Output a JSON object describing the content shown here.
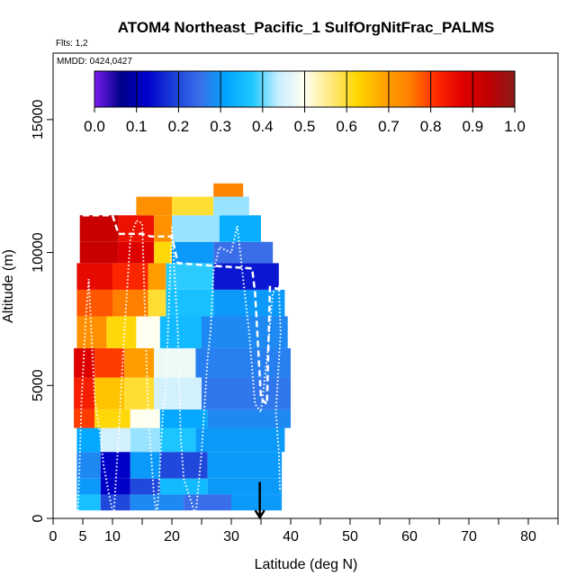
{
  "chart_data": {
    "type": "heatmap",
    "title": "ATOM4 Northeast_Pacific_1 SulfOrgNitFrac_PALMS",
    "subtitle": "Flts: 1,2",
    "mmdd": "MMDD: 0424,0427",
    "xlabel": "Latitude (deg N)",
    "ylabel": "Altitude (m)",
    "xlim": [
      0,
      85
    ],
    "ylim": [
      0,
      17500
    ],
    "x_ticks": [
      "0",
      "5",
      "10",
      "20",
      "30",
      "40",
      "50",
      "60",
      "70",
      "80"
    ],
    "x_tick_values": [
      0,
      5,
      10,
      20,
      30,
      40,
      50,
      60,
      70,
      80
    ],
    "y_ticks": [
      "0",
      "5000",
      "10000",
      "15000"
    ],
    "y_tick_values": [
      0,
      5000,
      10000,
      15000
    ],
    "colorbar": {
      "min": 0.0,
      "max": 1.0,
      "ticks": [
        "0.0",
        "0.1",
        "0.2",
        "0.3",
        "0.4",
        "0.5",
        "0.6",
        "0.7",
        "0.8",
        "0.9",
        "1.0"
      ],
      "colors": [
        "#7a1cf0",
        "#00008b",
        "#0000cd",
        "#1a3fd8",
        "#3a6ee8",
        "#00a5ff",
        "#1ec8ff",
        "#c8eeff",
        "#fffff0",
        "#ffe97f",
        "#ffd700",
        "#ffa500",
        "#ff7f00",
        "#ff2a00",
        "#e00000",
        "#c00000",
        "#8b1a1a"
      ]
    },
    "marker": {
      "latitude": 34.8,
      "altitude_top": 700
    },
    "bands": [
      {
        "alt": [
          300,
          900
        ],
        "cells": [
          [
            4,
            8,
            0.36
          ],
          [
            8,
            13,
            0.2
          ],
          [
            13,
            22,
            0.28
          ],
          [
            22,
            30,
            0.25
          ],
          [
            30,
            38.5,
            0.3
          ]
        ]
      },
      {
        "alt": [
          900,
          1500
        ],
        "cells": [
          [
            4,
            8,
            0.3
          ],
          [
            8,
            13,
            0.12
          ],
          [
            13,
            18,
            0.2
          ],
          [
            18,
            26,
            0.35
          ],
          [
            26,
            38.5,
            0.3
          ]
        ]
      },
      {
        "alt": [
          1500,
          2500
        ],
        "cells": [
          [
            4,
            8,
            0.28
          ],
          [
            8,
            13,
            0.12
          ],
          [
            13,
            18,
            0.3
          ],
          [
            18,
            26,
            0.2
          ],
          [
            26,
            38.5,
            0.3
          ]
        ]
      },
      {
        "alt": [
          2500,
          3400
        ],
        "cells": [
          [
            4,
            8,
            0.32
          ],
          [
            8,
            13,
            0.45
          ],
          [
            13,
            18,
            0.42
          ],
          [
            18,
            24,
            0.37
          ],
          [
            24,
            39,
            0.3
          ]
        ]
      },
      {
        "alt": [
          3400,
          4100
        ],
        "cells": [
          [
            3.5,
            7,
            0.8
          ],
          [
            7,
            13,
            0.62
          ],
          [
            13,
            18,
            0.5
          ],
          [
            18,
            26,
            0.32
          ],
          [
            26,
            40,
            0.28
          ]
        ]
      },
      {
        "alt": [
          4100,
          5300
        ],
        "cells": [
          [
            3.5,
            7,
            0.83
          ],
          [
            7,
            12,
            0.65
          ],
          [
            12,
            17,
            0.6
          ],
          [
            17,
            25,
            0.45
          ],
          [
            25,
            40,
            0.26
          ]
        ]
      },
      {
        "alt": [
          5300,
          6400
        ],
        "cells": [
          [
            3.5,
            7,
            0.88
          ],
          [
            7,
            12,
            0.8
          ],
          [
            12,
            17,
            0.7
          ],
          [
            17,
            24,
            0.48
          ],
          [
            24,
            40,
            0.27
          ]
        ]
      },
      {
        "alt": [
          6400,
          7600
        ],
        "cells": [
          [
            4,
            9,
            0.72
          ],
          [
            9,
            14,
            0.62
          ],
          [
            14,
            18,
            0.5
          ],
          [
            18,
            25,
            0.35
          ],
          [
            25,
            39.5,
            0.28
          ]
        ]
      },
      {
        "alt": [
          7600,
          8600
        ],
        "cells": [
          [
            4,
            10,
            0.78
          ],
          [
            10,
            16,
            0.75
          ],
          [
            16,
            19,
            0.6
          ],
          [
            19,
            27,
            0.36
          ],
          [
            27,
            39,
            0.3
          ]
        ]
      },
      {
        "alt": [
          8600,
          9600
        ],
        "cells": [
          [
            4,
            10,
            0.86
          ],
          [
            10,
            16,
            0.82
          ],
          [
            16,
            19,
            0.7
          ],
          [
            19,
            27,
            0.38
          ],
          [
            27,
            38,
            0.15
          ]
        ]
      },
      {
        "alt": [
          9600,
          10400
        ],
        "cells": [
          [
            4.5,
            11,
            0.92
          ],
          [
            11,
            17,
            0.88
          ],
          [
            17,
            20,
            0.62
          ],
          [
            20,
            27,
            0.3
          ],
          [
            27,
            37,
            0.25
          ]
        ]
      },
      {
        "alt": [
          10400,
          11400
        ],
        "cells": [
          [
            4.5,
            11,
            0.92
          ],
          [
            11,
            17,
            0.85
          ],
          [
            17,
            20,
            0.72
          ],
          [
            20,
            28,
            0.42
          ],
          [
            28,
            35,
            0.33
          ]
        ]
      },
      {
        "alt": [
          11400,
          12100
        ],
        "cells": [
          [
            14,
            20,
            0.72
          ],
          [
            20,
            27,
            0.6
          ],
          [
            27,
            33,
            0.42
          ]
        ]
      },
      {
        "alt": [
          12100,
          12600
        ],
        "cells": [
          [
            27,
            32,
            0.74
          ]
        ]
      }
    ],
    "tracks": [
      {
        "style": "dotted",
        "points": [
          [
            4.2,
            300
          ],
          [
            4.8,
            4500
          ],
          [
            5.5,
            7500
          ],
          [
            6,
            9000
          ],
          [
            7,
            4500
          ],
          [
            8,
            3000
          ],
          [
            8.5,
            2000
          ],
          [
            9.5,
            800
          ],
          [
            10.2,
            100
          ],
          [
            11,
            3000
          ],
          [
            12,
            7000
          ],
          [
            13,
            10500
          ],
          [
            14,
            11200
          ],
          [
            15,
            11100
          ],
          [
            16,
            4000
          ],
          [
            17,
            800
          ],
          [
            17.5,
            100
          ],
          [
            18.5,
            4000
          ],
          [
            19,
            5000
          ],
          [
            20,
            11000
          ],
          [
            21,
            7000
          ],
          [
            21.5,
            3000
          ],
          [
            22,
            1500
          ],
          [
            24,
            100
          ],
          [
            25,
            2500
          ],
          [
            26,
            6000
          ],
          [
            26.5,
            7000
          ],
          [
            27,
            9300
          ],
          [
            28,
            10200
          ],
          [
            30,
            10000
          ],
          [
            31,
            11000
          ],
          [
            32,
            9000
          ],
          [
            33,
            7000
          ],
          [
            34,
            4300
          ],
          [
            35,
            4000
          ],
          [
            36,
            6000
          ],
          [
            37,
            8500
          ],
          [
            38,
            8700
          ],
          [
            38.3,
            7000
          ],
          [
            37.5,
            4000
          ],
          [
            38,
            2500
          ],
          [
            38.2,
            1000
          ]
        ]
      },
      {
        "style": "dashed",
        "points": [
          [
            5,
            11400
          ],
          [
            10,
            11400
          ],
          [
            11,
            10700
          ],
          [
            15,
            10700
          ],
          [
            16.5,
            10600
          ],
          [
            20,
            10600
          ],
          [
            21,
            9600
          ],
          [
            27,
            9500
          ],
          [
            33.5,
            9400
          ],
          [
            34,
            8500
          ],
          [
            34.5,
            6500
          ],
          [
            35,
            4500
          ],
          [
            36,
            4300
          ],
          [
            36.5,
            8700
          ],
          [
            38.5,
            8600
          ]
        ]
      }
    ]
  }
}
